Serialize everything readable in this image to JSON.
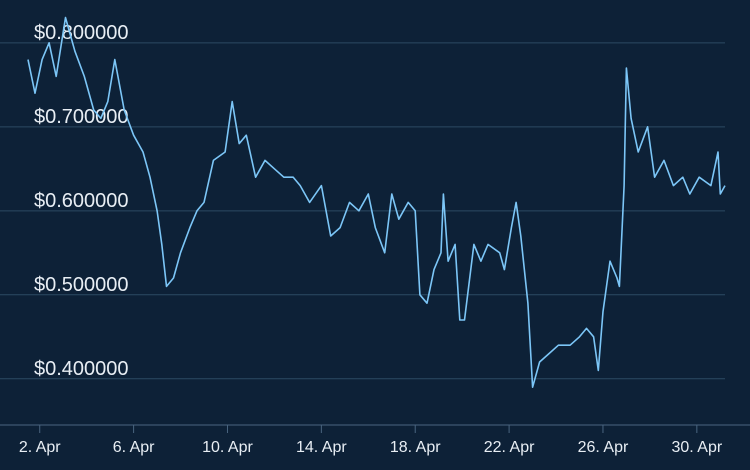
{
  "chart_data": {
    "type": "line",
    "x": [
      1.5,
      1.8,
      2.1,
      2.4,
      2.7,
      3.1,
      3.5,
      3.9,
      4.3,
      4.6,
      4.9,
      5.2,
      5.6,
      6.0,
      6.4,
      6.7,
      7.0,
      7.2,
      7.4,
      7.7,
      8.0,
      8.4,
      8.7,
      9.0,
      9.4,
      9.9,
      10.2,
      10.5,
      10.8,
      11.2,
      11.6,
      12.0,
      12.4,
      12.8,
      13.1,
      13.5,
      14.0,
      14.4,
      14.8,
      15.2,
      15.6,
      16.0,
      16.3,
      16.7,
      17.0,
      17.3,
      17.7,
      18.0,
      18.2,
      18.5,
      18.8,
      19.1,
      19.2,
      19.4,
      19.7,
      19.9,
      20.1,
      20.5,
      20.8,
      21.1,
      21.6,
      21.8,
      22.1,
      22.3,
      22.5,
      22.8,
      23.0,
      23.3,
      23.7,
      24.1,
      24.6,
      25.0,
      25.3,
      25.6,
      25.8,
      26.0,
      26.3,
      26.6,
      26.7,
      26.9,
      27.0,
      27.2,
      27.5,
      27.9,
      28.2,
      28.6,
      29.0,
      29.4,
      29.7,
      30.1,
      30.6,
      30.9,
      31.0,
      31.2
    ],
    "series": [
      {
        "color": "#7cc6f7",
        "values": [
          0.78,
          0.74,
          0.78,
          0.8,
          0.76,
          0.83,
          0.79,
          0.76,
          0.72,
          0.71,
          0.73,
          0.78,
          0.72,
          0.69,
          0.67,
          0.64,
          0.6,
          0.56,
          0.51,
          0.52,
          0.55,
          0.58,
          0.6,
          0.61,
          0.66,
          0.67,
          0.73,
          0.68,
          0.69,
          0.64,
          0.66,
          0.65,
          0.64,
          0.64,
          0.63,
          0.61,
          0.63,
          0.57,
          0.58,
          0.61,
          0.6,
          0.62,
          0.58,
          0.55,
          0.62,
          0.59,
          0.61,
          0.6,
          0.5,
          0.49,
          0.53,
          0.55,
          0.62,
          0.54,
          0.56,
          0.47,
          0.47,
          0.56,
          0.54,
          0.56,
          0.55,
          0.53,
          0.58,
          0.61,
          0.57,
          0.49,
          0.39,
          0.42,
          0.43,
          0.44,
          0.44,
          0.45,
          0.46,
          0.45,
          0.41,
          0.48,
          0.54,
          0.52,
          0.51,
          0.63,
          0.77,
          0.71,
          0.67,
          0.7,
          0.64,
          0.66,
          0.63,
          0.64,
          0.62,
          0.64,
          0.63,
          0.67,
          0.62,
          0.63
        ]
      }
    ],
    "xlim": [
      1.5,
      31.2
    ],
    "xticks": [
      {
        "value": 2,
        "label": "2. Apr"
      },
      {
        "value": 6,
        "label": "6. Apr"
      },
      {
        "value": 10,
        "label": "10. Apr"
      },
      {
        "value": 14,
        "label": "14. Apr"
      },
      {
        "value": 18,
        "label": "18. Apr"
      },
      {
        "value": 22,
        "label": "22. Apr"
      },
      {
        "value": 26,
        "label": "26. Apr"
      },
      {
        "value": 30,
        "label": "30. Apr"
      }
    ],
    "ylim": [
      0.345,
      0.851
    ],
    "yticks": [
      {
        "value": 0.4,
        "label": "$0.400000"
      },
      {
        "value": 0.5,
        "label": "$0.500000"
      },
      {
        "value": 0.6,
        "label": "$0.600000"
      },
      {
        "value": 0.7,
        "label": "$0.700000"
      },
      {
        "value": 0.8,
        "label": "$0.800000"
      }
    ],
    "grid": true
  }
}
